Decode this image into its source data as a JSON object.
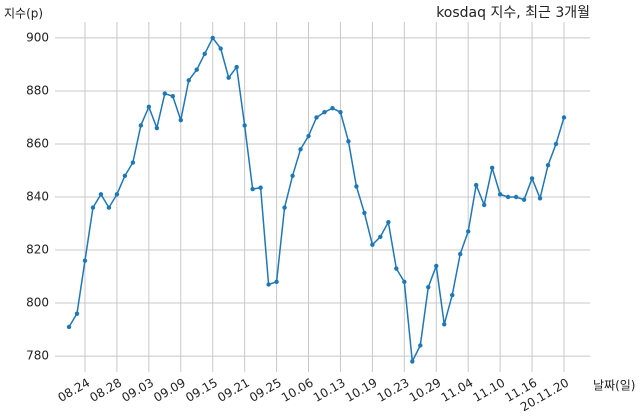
{
  "chart_data": {
    "type": "line",
    "title": "kosdaq 지수, 최근 3개월",
    "y_label": "지수(p)",
    "x_label": "날짜(일)",
    "categories": [
      null,
      null,
      "08.24",
      null,
      null,
      null,
      "08.28",
      null,
      null,
      null,
      "09.03",
      null,
      null,
      null,
      "09.09",
      null,
      null,
      null,
      "09.15",
      null,
      null,
      null,
      "09.21",
      null,
      null,
      null,
      "09.25",
      null,
      null,
      null,
      "10.06",
      null,
      null,
      null,
      "10.13",
      null,
      null,
      null,
      "10.19",
      null,
      null,
      null,
      "10.23",
      null,
      null,
      null,
      "10.29",
      null,
      null,
      null,
      "11.04",
      null,
      null,
      null,
      "11.10",
      null,
      null,
      null,
      "11.16",
      null,
      null,
      null,
      "20.11.20"
    ],
    "series": [
      {
        "name": "kosdaq",
        "color": "#1f77b4",
        "values": [
          791,
          796,
          816,
          836,
          841,
          836,
          841,
          848,
          853,
          867,
          874,
          866,
          879,
          878,
          869,
          884,
          888,
          894,
          900,
          896,
          885,
          889,
          867,
          843,
          843.5,
          807,
          808,
          836,
          848,
          858,
          863,
          870,
          872,
          873.5,
          872,
          861,
          844,
          834,
          822,
          825,
          830.5,
          813,
          808,
          778,
          784,
          806,
          814,
          792,
          803,
          818.5,
          827,
          844.5,
          837,
          851,
          841,
          840,
          840,
          839,
          847,
          839.5,
          852,
          860,
          870
        ]
      }
    ],
    "ylim": [
      774,
      906
    ],
    "yticks": [
      780,
      800,
      820,
      840,
      860,
      880,
      900
    ],
    "grid": true
  }
}
